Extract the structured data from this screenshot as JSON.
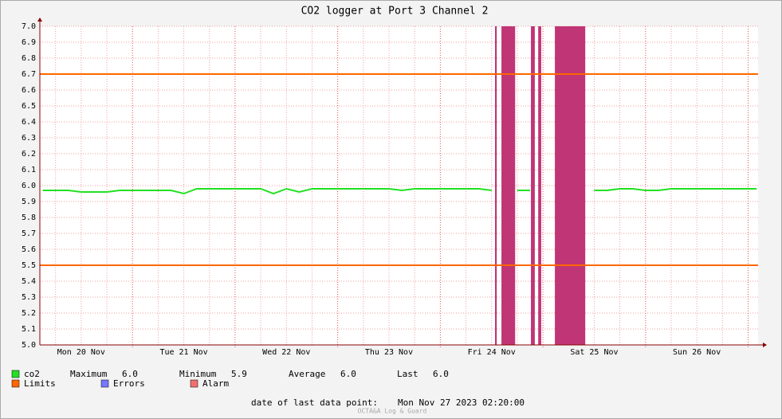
{
  "chart_data": {
    "type": "line",
    "title": "CO2 logger at Port 3 Channel 2",
    "xlim": [
      2.33,
      170.33
    ],
    "xticks": [
      24,
      48,
      72,
      96,
      120,
      144,
      168
    ],
    "xlabels": [
      {
        "value": 12,
        "label": "Mon 20 Nov"
      },
      {
        "value": 36,
        "label": "Tue 21 Nov"
      },
      {
        "value": 60,
        "label": "Wed 22 Nov"
      },
      {
        "value": 84,
        "label": "Thu 23 Nov"
      },
      {
        "value": 108,
        "label": "Fri 24 Nov"
      },
      {
        "value": 132,
        "label": "Sat 25 Nov"
      },
      {
        "value": 156,
        "label": "Sun 26 Nov"
      }
    ],
    "ylim": [
      5.0,
      7.0
    ],
    "yticks": [
      {
        "value": 5.0,
        "label": "5.0"
      },
      {
        "value": 5.1,
        "label": "5.1"
      },
      {
        "value": 5.2,
        "label": "5.2"
      },
      {
        "value": 5.3,
        "label": "5.3"
      },
      {
        "value": 5.4,
        "label": "5.4"
      },
      {
        "value": 5.5,
        "label": "5.5"
      },
      {
        "value": 5.6,
        "label": "5.6"
      },
      {
        "value": 5.7,
        "label": "5.7"
      },
      {
        "value": 5.8,
        "label": "5.8"
      },
      {
        "value": 5.9,
        "label": "5.9"
      },
      {
        "value": 6.0,
        "label": "6.0"
      },
      {
        "value": 6.1,
        "label": "6.1"
      },
      {
        "value": 6.2,
        "label": "6.2"
      },
      {
        "value": 6.3,
        "label": "6.3"
      },
      {
        "value": 6.4,
        "label": "6.4"
      },
      {
        "value": 6.5,
        "label": "6.5"
      },
      {
        "value": 6.6,
        "label": "6.6"
      },
      {
        "value": 6.7,
        "label": "6.7"
      },
      {
        "value": 6.8,
        "label": "6.8"
      },
      {
        "value": 6.9,
        "label": "6.9"
      },
      {
        "value": 7.0,
        "label": "7.0"
      }
    ],
    "grid": true,
    "x": [
      3,
      6,
      9,
      12,
      15,
      18,
      21,
      24,
      27,
      30,
      33,
      36,
      39,
      42,
      45,
      48,
      51,
      54,
      57,
      60,
      63,
      66,
      69,
      72,
      75,
      78,
      81,
      84,
      87,
      90,
      93,
      96,
      99,
      102,
      105,
      108,
      111,
      114,
      117,
      120,
      123,
      126,
      129,
      132,
      135,
      138,
      141,
      144,
      147,
      150,
      153,
      156,
      159,
      162,
      165,
      168,
      170
    ],
    "series": [
      {
        "name": "co2",
        "color": "#22e022",
        "values": [
          5.97,
          5.97,
          5.97,
          5.96,
          5.96,
          5.96,
          5.97,
          5.97,
          5.97,
          5.97,
          5.97,
          5.95,
          5.98,
          5.98,
          5.98,
          5.98,
          5.98,
          5.98,
          5.95,
          5.98,
          5.96,
          5.98,
          5.98,
          5.98,
          5.98,
          5.98,
          5.98,
          5.98,
          5.97,
          5.98,
          5.98,
          5.98,
          5.98,
          5.98,
          5.98,
          5.97,
          null,
          5.97,
          5.97,
          null,
          null,
          null,
          null,
          5.97,
          5.97,
          5.98,
          5.98,
          5.97,
          5.97,
          5.98,
          5.98,
          5.98,
          5.98,
          5.98,
          5.98,
          5.98,
          5.98
        ]
      }
    ],
    "limits": {
      "name": "Limits",
      "color": "#ff6600",
      "values": [
        5.5,
        6.7
      ]
    },
    "errors": {
      "name": "Errors",
      "color": "#7777ff"
    },
    "alarm": {
      "name": "Alarm",
      "color": "#f07070",
      "fill": "#c03575",
      "intervals": [
        [
          108.8,
          109.2
        ],
        [
          110.3,
          113.5
        ],
        [
          117.2,
          118.1
        ],
        [
          118.9,
          119.6
        ],
        [
          122.8,
          129.9
        ]
      ]
    },
    "stats": [
      {
        "label": "Maximum",
        "value": 6.0,
        "value_label": "6.0"
      },
      {
        "label": "Minimum",
        "value": 5.9,
        "value_label": "5.9"
      },
      {
        "label": "Average",
        "value": 6.0,
        "value_label": "6.0"
      },
      {
        "label": "Last",
        "value": 6.0,
        "value_label": "6.0"
      }
    ],
    "footer": {
      "label": "date of last data point:",
      "value": "Mon Nov 27 2023 02:20:00"
    },
    "watermark": "OCTA&A Log & Guard"
  }
}
